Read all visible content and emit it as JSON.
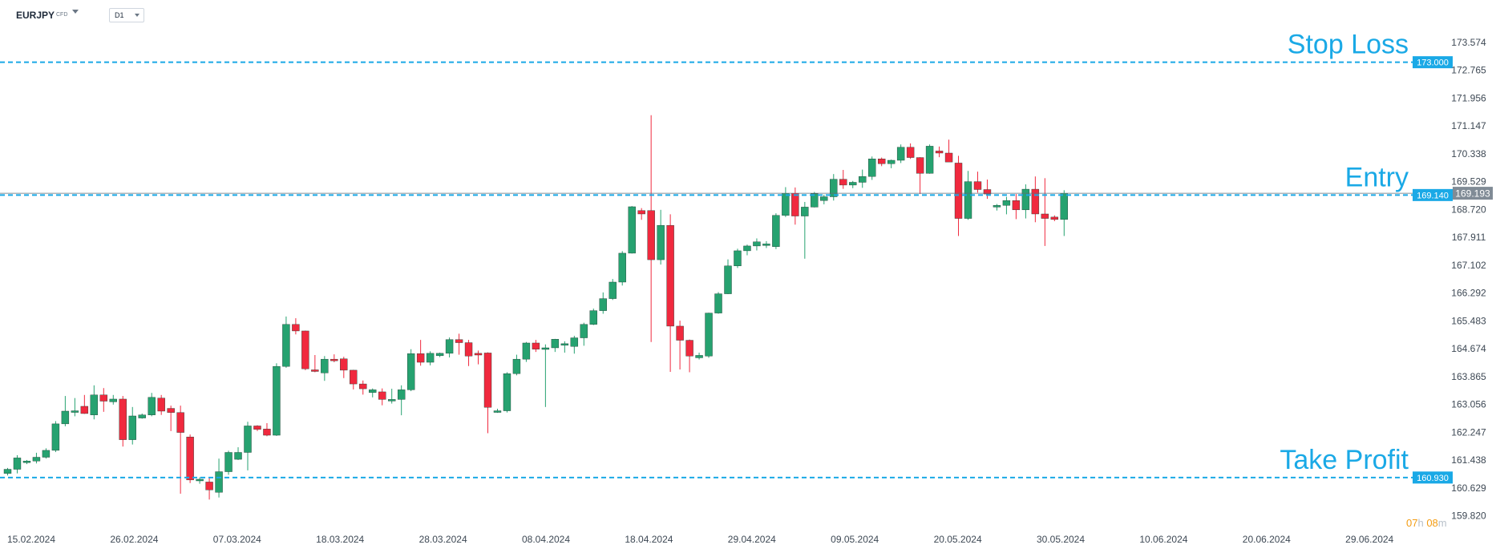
{
  "toolbar": {
    "symbol": "EURJPY",
    "symbol_type": "CFD",
    "timeframe": "D1"
  },
  "countdown": {
    "hours": "07",
    "hours_unit": "h",
    "minutes": "08",
    "minutes_unit": "m"
  },
  "colors": {
    "bull": "#26a270",
    "bear": "#f0293e",
    "level_line": "#1aa9e6",
    "axis_text": "#3d4854",
    "current_price_tag": "#808b96"
  },
  "chart_data": {
    "type": "candlestick",
    "symbol": "EURJPY",
    "timeframe": "D1",
    "ylim": [
      159.82,
      173.574
    ],
    "y_ticks": [
      "173.574",
      "172.765",
      "171.956",
      "171.147",
      "170.338",
      "169.529",
      "168.720",
      "167.911",
      "167.102",
      "166.292",
      "165.483",
      "164.674",
      "163.865",
      "163.056",
      "162.247",
      "161.438",
      "160.629",
      "159.820"
    ],
    "x_ticks": [
      "15.02.2024",
      "26.02.2024",
      "07.03.2024",
      "18.03.2024",
      "28.03.2024",
      "08.04.2024",
      "18.04.2024",
      "29.04.2024",
      "09.05.2024",
      "20.05.2024",
      "30.05.2024",
      "10.06.2024",
      "20.06.2024",
      "29.06.2024"
    ],
    "levels": [
      {
        "label": "Stop Loss",
        "price": "173.000"
      },
      {
        "label": "Entry",
        "price": "169.140"
      },
      {
        "label": "Take Profit",
        "price": "160.930"
      }
    ],
    "current_price": "169.193",
    "candles": [
      {
        "o": 161.05,
        "h": 161.21,
        "l": 160.99,
        "c": 161.17
      },
      {
        "o": 161.17,
        "h": 161.58,
        "l": 161.05,
        "c": 161.5
      },
      {
        "o": 161.37,
        "h": 161.44,
        "l": 161.32,
        "c": 161.41
      },
      {
        "o": 161.41,
        "h": 161.65,
        "l": 161.34,
        "c": 161.52
      },
      {
        "o": 161.52,
        "h": 161.78,
        "l": 161.48,
        "c": 161.72
      },
      {
        "o": 161.72,
        "h": 162.57,
        "l": 161.67,
        "c": 162.49
      },
      {
        "o": 162.49,
        "h": 163.3,
        "l": 162.42,
        "c": 162.86
      },
      {
        "o": 162.86,
        "h": 163.24,
        "l": 162.71,
        "c": 162.87
      },
      {
        "o": 163.0,
        "h": 163.33,
        "l": 162.78,
        "c": 162.79
      },
      {
        "o": 162.75,
        "h": 163.61,
        "l": 162.62,
        "c": 163.33
      },
      {
        "o": 163.33,
        "h": 163.53,
        "l": 162.84,
        "c": 163.15
      },
      {
        "o": 163.13,
        "h": 163.33,
        "l": 163.05,
        "c": 163.21
      },
      {
        "o": 163.21,
        "h": 163.3,
        "l": 161.83,
        "c": 162.03
      },
      {
        "o": 162.03,
        "h": 162.98,
        "l": 161.89,
        "c": 162.72
      },
      {
        "o": 162.66,
        "h": 162.79,
        "l": 162.64,
        "c": 162.75
      },
      {
        "o": 162.75,
        "h": 163.39,
        "l": 162.71,
        "c": 163.26
      },
      {
        "o": 163.24,
        "h": 163.33,
        "l": 162.75,
        "c": 162.86
      },
      {
        "o": 162.94,
        "h": 163.02,
        "l": 162.28,
        "c": 162.82
      },
      {
        "o": 162.82,
        "h": 163.02,
        "l": 160.46,
        "c": 162.24
      },
      {
        "o": 162.11,
        "h": 162.18,
        "l": 160.77,
        "c": 160.86
      },
      {
        "o": 160.86,
        "h": 160.94,
        "l": 160.75,
        "c": 160.88
      },
      {
        "o": 160.8,
        "h": 160.95,
        "l": 160.29,
        "c": 160.57
      },
      {
        "o": 160.5,
        "h": 161.48,
        "l": 160.35,
        "c": 161.1
      },
      {
        "o": 161.1,
        "h": 161.71,
        "l": 161.01,
        "c": 161.66
      },
      {
        "o": 161.46,
        "h": 161.81,
        "l": 161.44,
        "c": 161.66
      },
      {
        "o": 161.66,
        "h": 162.55,
        "l": 161.14,
        "c": 162.43
      },
      {
        "o": 162.43,
        "h": 162.45,
        "l": 162.28,
        "c": 162.33
      },
      {
        "o": 162.34,
        "h": 162.51,
        "l": 162.13,
        "c": 162.16
      },
      {
        "o": 162.16,
        "h": 164.25,
        "l": 162.14,
        "c": 164.16
      },
      {
        "o": 164.16,
        "h": 165.61,
        "l": 164.12,
        "c": 165.38
      },
      {
        "o": 165.38,
        "h": 165.56,
        "l": 165.09,
        "c": 165.19
      },
      {
        "o": 165.19,
        "h": 165.2,
        "l": 164.05,
        "c": 164.09
      },
      {
        "o": 164.06,
        "h": 164.49,
        "l": 163.99,
        "c": 164.05
      },
      {
        "o": 163.97,
        "h": 164.46,
        "l": 163.74,
        "c": 164.37
      },
      {
        "o": 164.37,
        "h": 164.51,
        "l": 164.28,
        "c": 164.33
      },
      {
        "o": 164.38,
        "h": 164.44,
        "l": 163.82,
        "c": 164.05
      },
      {
        "o": 164.05,
        "h": 164.06,
        "l": 163.49,
        "c": 163.65
      },
      {
        "o": 163.65,
        "h": 163.75,
        "l": 163.34,
        "c": 163.51
      },
      {
        "o": 163.4,
        "h": 163.52,
        "l": 163.26,
        "c": 163.48
      },
      {
        "o": 163.42,
        "h": 163.52,
        "l": 163.03,
        "c": 163.2
      },
      {
        "o": 163.2,
        "h": 163.51,
        "l": 163.08,
        "c": 163.2
      },
      {
        "o": 163.2,
        "h": 163.61,
        "l": 162.74,
        "c": 163.48
      },
      {
        "o": 163.48,
        "h": 164.66,
        "l": 163.44,
        "c": 164.53
      },
      {
        "o": 164.53,
        "h": 164.93,
        "l": 164.18,
        "c": 164.28
      },
      {
        "o": 164.28,
        "h": 164.6,
        "l": 164.19,
        "c": 164.54
      },
      {
        "o": 164.47,
        "h": 164.56,
        "l": 164.43,
        "c": 164.54
      },
      {
        "o": 164.54,
        "h": 165.0,
        "l": 164.42,
        "c": 164.94
      },
      {
        "o": 164.94,
        "h": 165.11,
        "l": 164.5,
        "c": 164.85
      },
      {
        "o": 164.85,
        "h": 164.93,
        "l": 164.17,
        "c": 164.46
      },
      {
        "o": 164.54,
        "h": 164.62,
        "l": 164.22,
        "c": 164.49
      },
      {
        "o": 164.55,
        "h": 164.57,
        "l": 162.22,
        "c": 162.97
      },
      {
        "o": 162.84,
        "h": 162.93,
        "l": 162.81,
        "c": 162.87
      },
      {
        "o": 162.87,
        "h": 163.99,
        "l": 162.82,
        "c": 163.95
      },
      {
        "o": 163.95,
        "h": 164.5,
        "l": 163.9,
        "c": 164.37
      },
      {
        "o": 164.37,
        "h": 164.87,
        "l": 164.29,
        "c": 164.84
      },
      {
        "o": 164.84,
        "h": 164.93,
        "l": 164.58,
        "c": 164.66
      },
      {
        "o": 164.66,
        "h": 164.8,
        "l": 162.98,
        "c": 164.7
      },
      {
        "o": 164.7,
        "h": 164.96,
        "l": 164.58,
        "c": 164.95
      },
      {
        "o": 164.82,
        "h": 164.89,
        "l": 164.56,
        "c": 164.82
      },
      {
        "o": 164.74,
        "h": 165.05,
        "l": 164.53,
        "c": 164.99
      },
      {
        "o": 164.99,
        "h": 165.43,
        "l": 164.76,
        "c": 165.38
      },
      {
        "o": 165.38,
        "h": 165.84,
        "l": 165.36,
        "c": 165.78
      },
      {
        "o": 165.78,
        "h": 166.31,
        "l": 165.69,
        "c": 166.13
      },
      {
        "o": 166.13,
        "h": 166.7,
        "l": 166.09,
        "c": 166.61
      },
      {
        "o": 166.61,
        "h": 167.51,
        "l": 166.51,
        "c": 167.45
      },
      {
        "o": 167.45,
        "h": 168.82,
        "l": 167.44,
        "c": 168.8
      },
      {
        "o": 168.69,
        "h": 168.76,
        "l": 168.42,
        "c": 168.59
      },
      {
        "o": 168.69,
        "h": 171.46,
        "l": 164.87,
        "c": 167.26
      },
      {
        "o": 167.26,
        "h": 168.71,
        "l": 167.12,
        "c": 168.26
      },
      {
        "o": 168.26,
        "h": 168.58,
        "l": 164.0,
        "c": 165.33
      },
      {
        "o": 165.33,
        "h": 165.49,
        "l": 164.07,
        "c": 164.92
      },
      {
        "o": 164.92,
        "h": 164.94,
        "l": 163.99,
        "c": 164.46
      },
      {
        "o": 164.41,
        "h": 164.56,
        "l": 164.36,
        "c": 164.48
      },
      {
        "o": 164.46,
        "h": 165.72,
        "l": 164.41,
        "c": 165.71
      },
      {
        "o": 165.71,
        "h": 166.32,
        "l": 165.69,
        "c": 166.27
      },
      {
        "o": 166.27,
        "h": 167.27,
        "l": 166.26,
        "c": 167.08
      },
      {
        "o": 167.08,
        "h": 167.58,
        "l": 167.02,
        "c": 167.52
      },
      {
        "o": 167.52,
        "h": 167.7,
        "l": 167.39,
        "c": 167.66
      },
      {
        "o": 167.66,
        "h": 167.88,
        "l": 167.53,
        "c": 167.78
      },
      {
        "o": 167.7,
        "h": 167.8,
        "l": 167.6,
        "c": 167.72
      },
      {
        "o": 167.64,
        "h": 168.61,
        "l": 167.57,
        "c": 168.55
      },
      {
        "o": 168.55,
        "h": 169.37,
        "l": 168.5,
        "c": 169.19
      },
      {
        "o": 169.19,
        "h": 169.36,
        "l": 168.28,
        "c": 168.53
      },
      {
        "o": 168.53,
        "h": 168.94,
        "l": 167.29,
        "c": 168.79
      },
      {
        "o": 168.79,
        "h": 169.23,
        "l": 168.78,
        "c": 169.18
      },
      {
        "o": 168.98,
        "h": 169.15,
        "l": 168.87,
        "c": 169.09
      },
      {
        "o": 169.09,
        "h": 169.75,
        "l": 168.98,
        "c": 169.6
      },
      {
        "o": 169.6,
        "h": 169.87,
        "l": 169.32,
        "c": 169.43
      },
      {
        "o": 169.43,
        "h": 169.55,
        "l": 169.34,
        "c": 169.51
      },
      {
        "o": 169.51,
        "h": 169.88,
        "l": 169.35,
        "c": 169.68
      },
      {
        "o": 169.68,
        "h": 170.26,
        "l": 169.58,
        "c": 170.19
      },
      {
        "o": 170.19,
        "h": 170.23,
        "l": 169.98,
        "c": 170.05
      },
      {
        "o": 170.05,
        "h": 170.17,
        "l": 169.92,
        "c": 170.15
      },
      {
        "o": 170.15,
        "h": 170.61,
        "l": 170.07,
        "c": 170.53
      },
      {
        "o": 170.53,
        "h": 170.64,
        "l": 170.19,
        "c": 170.23
      },
      {
        "o": 170.23,
        "h": 170.24,
        "l": 169.17,
        "c": 169.77
      },
      {
        "o": 169.77,
        "h": 170.61,
        "l": 169.76,
        "c": 170.56
      },
      {
        "o": 170.42,
        "h": 170.55,
        "l": 170.24,
        "c": 170.36
      },
      {
        "o": 170.36,
        "h": 170.75,
        "l": 170.14,
        "c": 170.1
      },
      {
        "o": 170.07,
        "h": 170.28,
        "l": 167.95,
        "c": 168.46
      },
      {
        "o": 168.46,
        "h": 169.84,
        "l": 168.42,
        "c": 169.53
      },
      {
        "o": 169.53,
        "h": 169.82,
        "l": 169.21,
        "c": 169.3
      },
      {
        "o": 169.3,
        "h": 169.59,
        "l": 169.03,
        "c": 169.17
      },
      {
        "o": 168.79,
        "h": 168.88,
        "l": 168.69,
        "c": 168.84
      },
      {
        "o": 168.84,
        "h": 169.09,
        "l": 168.58,
        "c": 168.98
      },
      {
        "o": 168.98,
        "h": 169.17,
        "l": 168.44,
        "c": 168.71
      },
      {
        "o": 168.71,
        "h": 169.45,
        "l": 168.46,
        "c": 169.31
      },
      {
        "o": 169.31,
        "h": 169.68,
        "l": 168.35,
        "c": 168.59
      },
      {
        "o": 168.59,
        "h": 169.63,
        "l": 167.66,
        "c": 168.46
      },
      {
        "o": 168.5,
        "h": 168.55,
        "l": 168.38,
        "c": 168.43
      },
      {
        "o": 168.43,
        "h": 169.28,
        "l": 167.95,
        "c": 169.19
      }
    ]
  }
}
